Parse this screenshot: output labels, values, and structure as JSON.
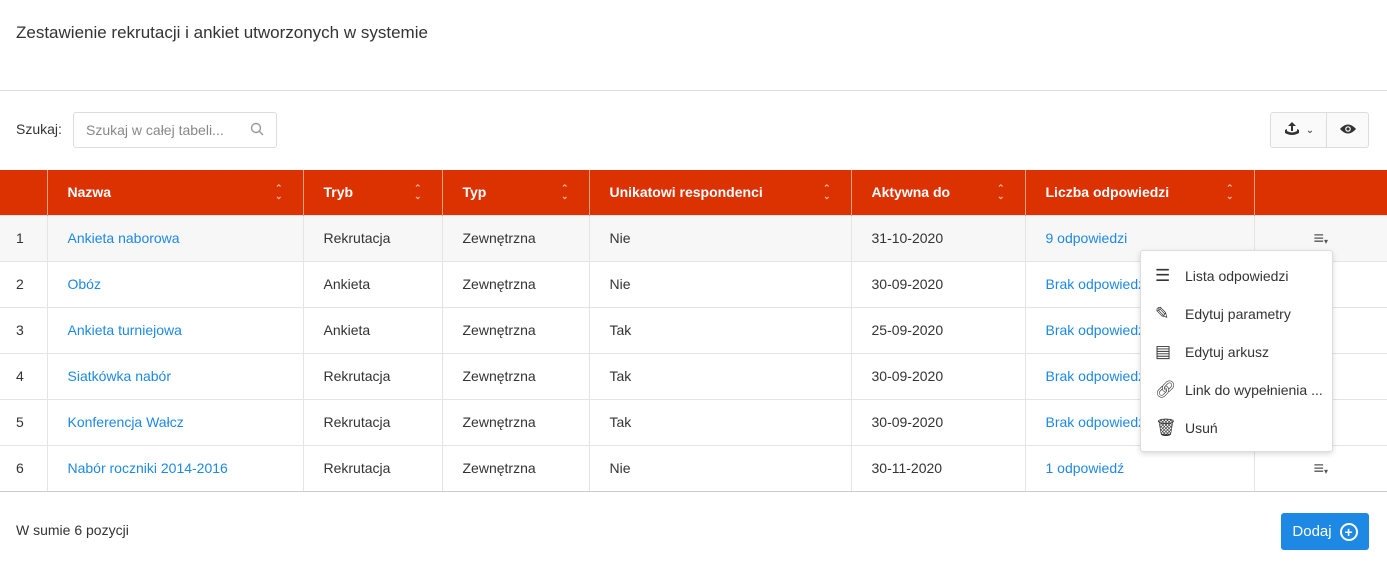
{
  "title": "Zestawienie rekrutacji i ankiet utworzonych w systemie",
  "search": {
    "label": "Szukaj:",
    "placeholder": "Szukaj w całej tabeli..."
  },
  "columns": [
    "",
    "Nazwa",
    "Tryb",
    "Typ",
    "Unikatowi respondenci",
    "Aktywna do",
    "Liczba odpowiedzi",
    ""
  ],
  "rows": [
    {
      "no": "1",
      "name": "Ankieta naborowa",
      "mode": "Rekrutacja",
      "type": "Zewnętrzna",
      "unique": "Nie",
      "active": "31-10-2020",
      "answers": "9 odpowiedzi"
    },
    {
      "no": "2",
      "name": "Obóz",
      "mode": "Ankieta",
      "type": "Zewnętrzna",
      "unique": "Nie",
      "active": "30-09-2020",
      "answers": "Brak odpowiedzi"
    },
    {
      "no": "3",
      "name": "Ankieta turniejowa",
      "mode": "Ankieta",
      "type": "Zewnętrzna",
      "unique": "Tak",
      "active": "25-09-2020",
      "answers": "Brak odpowiedzi"
    },
    {
      "no": "4",
      "name": "Siatkówka nabór",
      "mode": "Rekrutacja",
      "type": "Zewnętrzna",
      "unique": "Tak",
      "active": "30-09-2020",
      "answers": "Brak odpowiedzi"
    },
    {
      "no": "5",
      "name": "Konferencja Wałcz",
      "mode": "Rekrutacja",
      "type": "Zewnętrzna",
      "unique": "Tak",
      "active": "30-09-2020",
      "answers": "Brak odpowiedzi"
    },
    {
      "no": "6",
      "name": "Nabór roczniki 2014-2016",
      "mode": "Rekrutacja",
      "type": "Zewnętrzna",
      "unique": "Nie",
      "active": "30-11-2020",
      "answers": "1 odpowiedź"
    }
  ],
  "menu": [
    {
      "icon": "list-icon",
      "label": "Lista odpowiedzi"
    },
    {
      "icon": "edit-icon",
      "label": "Edytuj parametry"
    },
    {
      "icon": "sheet-icon",
      "label": "Edytuj arkusz"
    },
    {
      "icon": "link-icon",
      "label": "Link do wypełnienia ..."
    },
    {
      "icon": "trash-icon",
      "label": "Usuń"
    }
  ],
  "footer": {
    "total": "W sumie 6 pozycji",
    "add_label": "Dodaj"
  },
  "colors": {
    "header": "#dc3100",
    "link": "#1e88e5"
  }
}
